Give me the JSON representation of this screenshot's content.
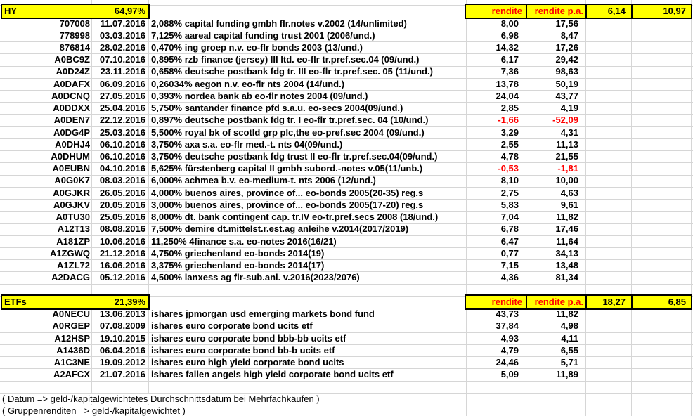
{
  "colors": {
    "highlight": "#ffff00",
    "negative_value": "#ff0000",
    "text": "#000000",
    "gridline": "#d6d6d6"
  },
  "hy": {
    "label": "HY",
    "weight": "64,97%",
    "col_rendite": "rendite",
    "col_rendite_pa": "rendite p.a.",
    "group_rendite": "6,14",
    "group_rendite_pa": "10,97",
    "rows": [
      {
        "id": "707008",
        "date": "11.07.2016",
        "name": "2,088% capital funding gmbh flr.notes v.2002 (14/unlimited)",
        "rendite": "8,00",
        "rendite_pa": "17,56"
      },
      {
        "id": "778998",
        "date": "03.03.2016",
        "name": "7,125% aareal capital funding trust 2001 (2006/und.)",
        "rendite": "6,98",
        "rendite_pa": "8,47"
      },
      {
        "id": "876814",
        "date": "28.02.2016",
        "name": "0,470% ing groep n.v. eo-flr bonds 2003 (13/und.)",
        "rendite": "14,32",
        "rendite_pa": "17,26"
      },
      {
        "id": "A0BC9Z",
        "date": "07.10.2016",
        "name": "0,895% rzb finance (jersey) III ltd. eo-flr tr.pref.sec.04 (09/und.)",
        "rendite": "6,17",
        "rendite_pa": "29,42"
      },
      {
        "id": "A0D24Z",
        "date": "23.11.2016",
        "name": "0,658% deutsche postbank fdg tr. III eo-flr tr.pref.sec. 05 (11/und.)",
        "rendite": "7,36",
        "rendite_pa": "98,63"
      },
      {
        "id": "A0DAFX",
        "date": "06.09.2016",
        "name": "0,26034% aegon n.v. eo-flr nts 2004 (14/und.)",
        "rendite": "13,78",
        "rendite_pa": "50,19"
      },
      {
        "id": "A0DCNQ",
        "date": "27.05.2016",
        "name": "0,393% nordea bank ab eo-flr notes 2004 (09/und.)",
        "rendite": "24,04",
        "rendite_pa": "43,77"
      },
      {
        "id": "A0DDXX",
        "date": "25.04.2016",
        "name": "5,750% santander finance pfd s.a.u. eo-secs 2004(09/und.)",
        "rendite": "2,85",
        "rendite_pa": "4,19"
      },
      {
        "id": "A0DEN7",
        "date": "22.12.2016",
        "name": "0,897% deutsche postbank fdg tr. I eo-flr tr.pref.sec. 04 (10/und.)",
        "rendite": "-1,66",
        "rendite_pa": "-52,09"
      },
      {
        "id": "A0DG4P",
        "date": "25.03.2016",
        "name": "5,500% royal bk of scotld grp plc,the eo-pref.sec 2004 (09/und.)",
        "rendite": "3,29",
        "rendite_pa": "4,31"
      },
      {
        "id": "A0DHJ4",
        "date": "06.10.2016",
        "name": "3,750% axa s.a. eo-flr med.-t. nts 04(09/und.)",
        "rendite": "2,55",
        "rendite_pa": "11,13"
      },
      {
        "id": "A0DHUM",
        "date": "06.10.2016",
        "name": "3,750% deutsche postbank fdg trust II eo-flr tr.pref.sec.04(09/und.)",
        "rendite": "4,78",
        "rendite_pa": "21,55"
      },
      {
        "id": "A0EUBN",
        "date": "04.10.2016",
        "name": "5,625% fürstenberg capital II gmbh subord.-notes v.05(11/unb.)",
        "rendite": "-0,53",
        "rendite_pa": "-1,81"
      },
      {
        "id": "A0G0K7",
        "date": "08.03.2016",
        "name": "6,000% achmea b.v. eo-medium-t. nts 2006 (12/und.)",
        "rendite": "8,10",
        "rendite_pa": "10,00"
      },
      {
        "id": "A0GJKR",
        "date": "26.05.2016",
        "name": "4,000% buenos aires, province of... eo-bonds 2005(20-35) reg.s",
        "rendite": "2,75",
        "rendite_pa": "4,63"
      },
      {
        "id": "A0GJKV",
        "date": "20.05.2016",
        "name": "3,000% buenos aires, province of... eo-bonds 2005(17-20) reg.s",
        "rendite": "5,83",
        "rendite_pa": "9,61"
      },
      {
        "id": "A0TU30",
        "date": "25.05.2016",
        "name": "8,000% dt. bank contingent cap. tr.IV eo-tr.pref.secs 2008 (18/und.)",
        "rendite": "7,04",
        "rendite_pa": "11,82"
      },
      {
        "id": "A12T13",
        "date": "08.08.2016",
        "name": "7,500% demire dt.mittelst.r.est.ag anleihe v.2014(2017/2019)",
        "rendite": "6,78",
        "rendite_pa": "17,46"
      },
      {
        "id": "A181ZP",
        "date": "10.06.2016",
        "name": "11,250% 4finance s.a. eo-notes 2016(16/21)",
        "rendite": "6,47",
        "rendite_pa": "11,64"
      },
      {
        "id": "A1ZGWQ",
        "date": "21.12.2016",
        "name": "4,750% griechenland eo-bonds 2014(19)",
        "rendite": "0,77",
        "rendite_pa": "34,13"
      },
      {
        "id": "A1ZL72",
        "date": "16.06.2016",
        "name": "3,375% griechenland eo-bonds 2014(17)",
        "rendite": "7,15",
        "rendite_pa": "13,48"
      },
      {
        "id": "A2DACG",
        "date": "05.12.2016",
        "name": "4,500% lanxess ag flr-sub.anl. v.2016(2023/2076)",
        "rendite": "4,36",
        "rendite_pa": "81,34"
      }
    ]
  },
  "etf": {
    "label": "ETFs",
    "weight": "21,39%",
    "col_rendite": "rendite",
    "col_rendite_pa": "rendite p.a.",
    "group_rendite": "18,27",
    "group_rendite_pa": "6,85",
    "rows": [
      {
        "id": "A0NECU",
        "date": "13.06.2013",
        "name": "ishares jpmorgan usd emerging markets bond fund",
        "rendite": "43,73",
        "rendite_pa": "11,82"
      },
      {
        "id": "A0RGEP",
        "date": "07.08.2009",
        "name": "ishares euro corporate bond ucits etf",
        "rendite": "37,84",
        "rendite_pa": "4,98"
      },
      {
        "id": "A12HSP",
        "date": "19.10.2015",
        "name": "ishares euro corporate bond bbb-bb ucits etf",
        "rendite": "4,93",
        "rendite_pa": "4,11"
      },
      {
        "id": "A1436D",
        "date": "06.04.2016",
        "name": "ishares euro corporate bond bb-b ucits etf",
        "rendite": "4,79",
        "rendite_pa": "6,55"
      },
      {
        "id": "A1C3NE",
        "date": "19.09.2012",
        "name": "ishares euro high yield corporate bond ucits",
        "rendite": "24,46",
        "rendite_pa": "5,71"
      },
      {
        "id": "A2AFCX",
        "date": "21.07.2016",
        "name": "ishares fallen angels high yield corporate bond ucits etf",
        "rendite": "5,09",
        "rendite_pa": "11,89"
      }
    ]
  },
  "footnotes": [
    "( Datum => geld-/kapitalgewichtetes Durchschnittsdatum bei Mehrfachkäufen )",
    "( Gruppenrenditen => geld-/kapitalgewichtet )"
  ]
}
